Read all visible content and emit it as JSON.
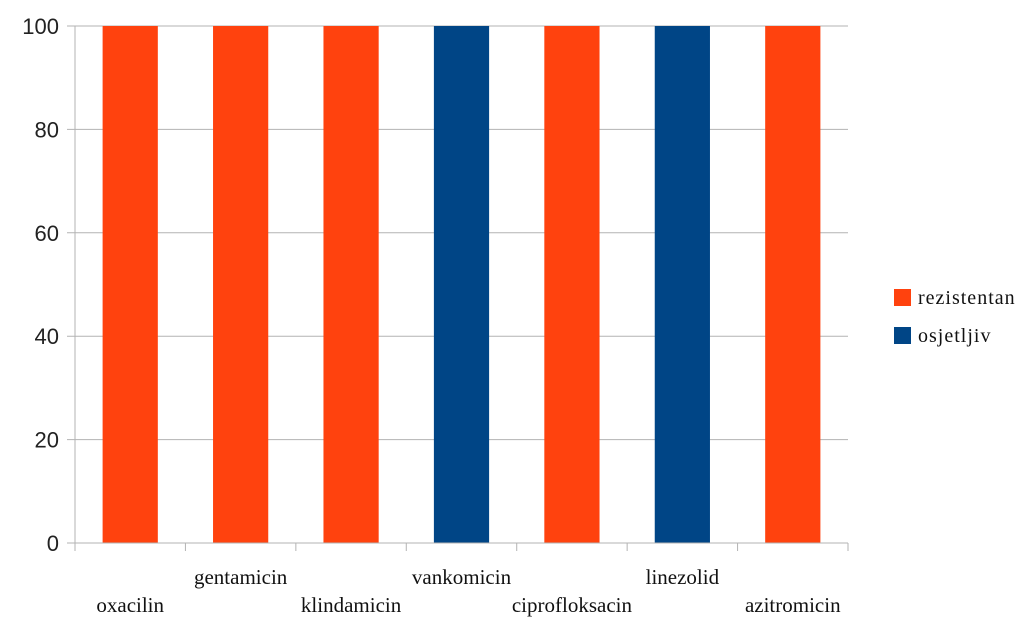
{
  "chart_data": {
    "type": "bar",
    "categories": [
      "oxacilin",
      "gentamicin",
      "klindamicin",
      "vankomicin",
      "ciprofloksacin",
      "linezolid",
      "azitromicin"
    ],
    "series": [
      {
        "name": "rezistentan",
        "color": "#ff420e",
        "values": [
          100,
          100,
          100,
          0,
          100,
          0,
          100
        ]
      },
      {
        "name": "osjetljiv",
        "color": "#004586",
        "values": [
          0,
          0,
          0,
          100,
          0,
          100,
          0
        ]
      }
    ],
    "yticks": [
      "0",
      "20",
      "40",
      "60",
      "80",
      "100"
    ],
    "ylim": [
      0,
      100
    ],
    "grid": true,
    "legend_position": "right",
    "title": "",
    "xlabel": "",
    "ylabel": ""
  }
}
